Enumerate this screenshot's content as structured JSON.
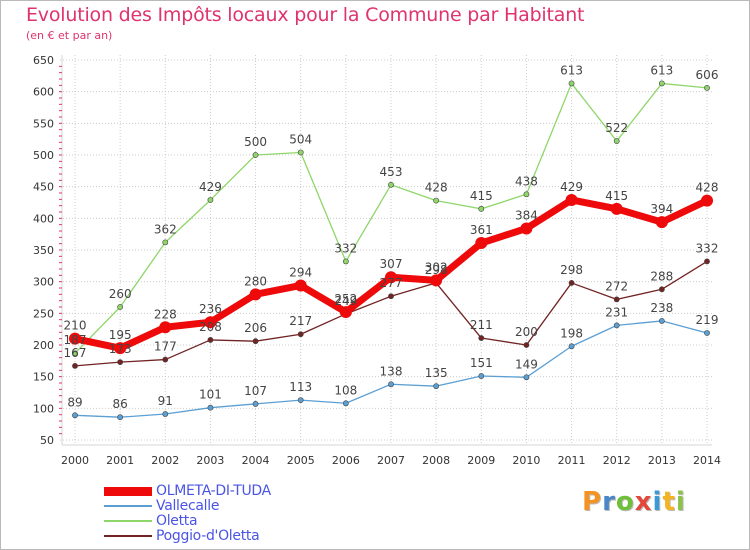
{
  "title": "Evolution des Impôts locaux pour la Commune par Habitant",
  "subtitle": "(en € et par an)",
  "logo": {
    "text": "Proxiti",
    "colors": [
      "#f39323",
      "#4a86c8",
      "#6fbf3a",
      "#e2493b",
      "#3a9ad9",
      "#f3b323",
      "#8bc34a"
    ]
  },
  "colors": {
    "title": "#e0336e",
    "grid": "#cccccc",
    "axis_text": "#333333",
    "legend_text": "#4a55e6"
  },
  "chart_data": {
    "type": "line",
    "x": [
      "2000",
      "2001",
      "2002",
      "2003",
      "2004",
      "2005",
      "2006",
      "2007",
      "2008",
      "2009",
      "2010",
      "2011",
      "2012",
      "2013",
      "2014"
    ],
    "ylim": [
      50,
      650
    ],
    "yticks": [
      50,
      100,
      150,
      200,
      250,
      300,
      350,
      400,
      450,
      500,
      550,
      600,
      650
    ],
    "grid": true,
    "legend_position": "bottom-left",
    "series": [
      {
        "name": "Poggio-d'Oletta",
        "color": "#722323",
        "width": 1.3,
        "marker": 2.6,
        "values": [
          167,
          173,
          177,
          208,
          206,
          217,
          249,
          277,
          298,
          211,
          200,
          298,
          272,
          288,
          332
        ],
        "labels": [
          "167",
          "173",
          "177",
          "208",
          "206",
          "217",
          "249",
          "277",
          "298",
          "211",
          "200",
          "298",
          "272",
          "288",
          "332"
        ]
      },
      {
        "name": "Oletta",
        "color": "#8fd66a",
        "width": 1.3,
        "marker": 2.6,
        "values": [
          187,
          260,
          362,
          429,
          500,
          504,
          332,
          453,
          428,
          415,
          438,
          613,
          522,
          613,
          606
        ],
        "labels": [
          "187",
          "260",
          "362",
          "429",
          "500",
          "504",
          "332",
          "453",
          "428",
          "415",
          "438",
          "613",
          "522",
          "613",
          "606"
        ]
      },
      {
        "name": "Vallecalle",
        "color": "#5b9fd3",
        "width": 1.3,
        "marker": 2.6,
        "values": [
          89,
          86,
          91,
          101,
          107,
          113,
          108,
          138,
          135,
          151,
          149,
          198,
          231,
          238,
          219
        ],
        "labels": [
          "89",
          "86",
          "91",
          "101",
          "107",
          "113",
          "108",
          "138",
          "135",
          "151",
          "149",
          "198",
          "231",
          "238",
          "219"
        ]
      },
      {
        "name": "OLMETA-DI-TUDA",
        "color": "#ee0a0a",
        "width": 7,
        "marker": 6,
        "values": [
          210,
          195,
          228,
          236,
          280,
          294,
          252,
          307,
          302,
          361,
          384,
          429,
          415,
          394,
          428
        ],
        "labels": [
          "210",
          "195",
          "228",
          "236",
          "280",
          "294",
          "252",
          "307",
          "302",
          "361",
          "384",
          "429",
          "415",
          "394",
          "428"
        ]
      }
    ],
    "legend_order": [
      "OLMETA-DI-TUDA",
      "Vallecalle",
      "Oletta",
      "Poggio-d'Oletta"
    ]
  }
}
